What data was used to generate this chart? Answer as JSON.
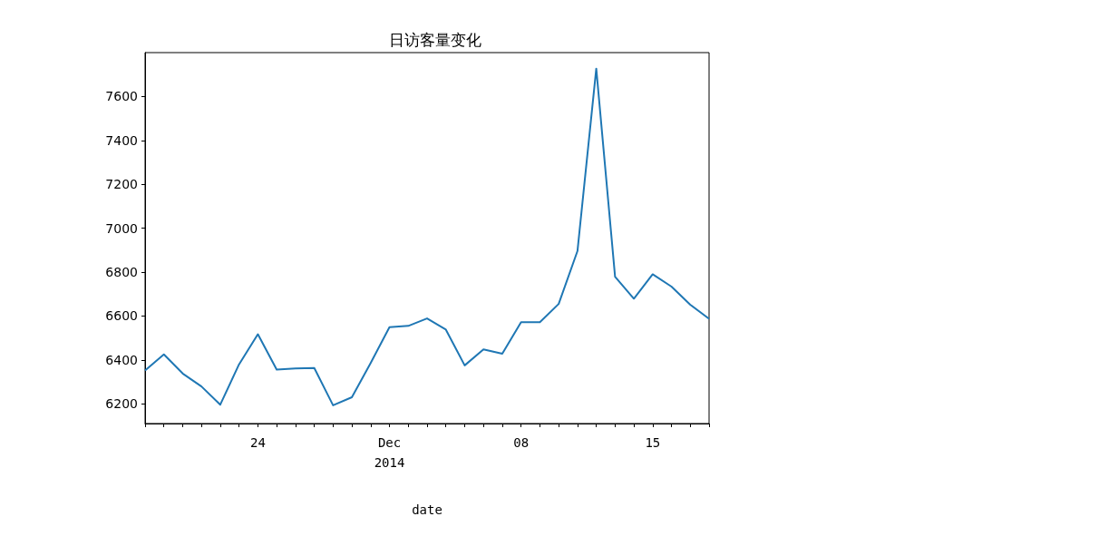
{
  "chart_data": {
    "type": "line",
    "title": "日访客量变化",
    "xlabel": "date",
    "x": [
      "2014-11-18",
      "2014-11-19",
      "2014-11-20",
      "2014-11-21",
      "2014-11-22",
      "2014-11-23",
      "2014-11-24",
      "2014-11-25",
      "2014-11-26",
      "2014-11-27",
      "2014-11-28",
      "2014-11-29",
      "2014-11-30",
      "2014-12-01",
      "2014-12-02",
      "2014-12-03",
      "2014-12-04",
      "2014-12-05",
      "2014-12-06",
      "2014-12-07",
      "2014-12-08",
      "2014-12-09",
      "2014-12-10",
      "2014-12-11",
      "2014-12-12",
      "2014-12-13",
      "2014-12-14",
      "2014-12-15",
      "2014-12-16",
      "2014-12-17",
      "2014-12-18"
    ],
    "series": [
      {
        "color": "#1f77b4",
        "values": [
          6352,
          6425,
          6338,
          6279,
          6196,
          6380,
          6517,
          6356,
          6361,
          6363,
          6193,
          6230,
          6386,
          6549,
          6555,
          6589,
          6538,
          6375,
          6448,
          6428,
          6572,
          6572,
          6655,
          6896,
          7727,
          6779,
          6679,
          6790,
          6734,
          6651,
          6587
        ]
      }
    ],
    "xlim": [
      "2014-11-18",
      "2014-12-18"
    ],
    "xticks": [
      {
        "value": "2014-11-18",
        "label": null
      },
      {
        "value": "2014-11-19",
        "label": null
      },
      {
        "value": "2014-11-20",
        "label": null
      },
      {
        "value": "2014-11-21",
        "label": null
      },
      {
        "value": "2014-11-22",
        "label": null
      },
      {
        "value": "2014-11-23",
        "label": null
      },
      {
        "value": "2014-11-24",
        "label": "24"
      },
      {
        "value": "2014-11-25",
        "label": null
      },
      {
        "value": "2014-11-26",
        "label": null
      },
      {
        "value": "2014-11-27",
        "label": null
      },
      {
        "value": "2014-11-28",
        "label": null
      },
      {
        "value": "2014-11-29",
        "label": null
      },
      {
        "value": "2014-11-30",
        "label": null
      },
      {
        "value": "2014-12-01",
        "label": "Dec\n2014"
      },
      {
        "value": "2014-12-02",
        "label": null
      },
      {
        "value": "2014-12-03",
        "label": null
      },
      {
        "value": "2014-12-04",
        "label": null
      },
      {
        "value": "2014-12-05",
        "label": null
      },
      {
        "value": "2014-12-06",
        "label": null
      },
      {
        "value": "2014-12-07",
        "label": null
      },
      {
        "value": "2014-12-08",
        "label": "08"
      },
      {
        "value": "2014-12-09",
        "label": null
      },
      {
        "value": "2014-12-10",
        "label": null
      },
      {
        "value": "2014-12-11",
        "label": null
      },
      {
        "value": "2014-12-12",
        "label": null
      },
      {
        "value": "2014-12-13",
        "label": null
      },
      {
        "value": "2014-12-14",
        "label": null
      },
      {
        "value": "2014-12-15",
        "label": "15"
      },
      {
        "value": "2014-12-16",
        "label": null
      },
      {
        "value": "2014-12-17",
        "label": null
      },
      {
        "value": "2014-12-18",
        "label": null
      }
    ],
    "ylim": [
      6110,
      7800
    ],
    "yticks": [
      6200,
      6400,
      6600,
      6800,
      7000,
      7200,
      7400,
      7600
    ],
    "grid": false,
    "marker": "none",
    "line_style": "solid"
  }
}
